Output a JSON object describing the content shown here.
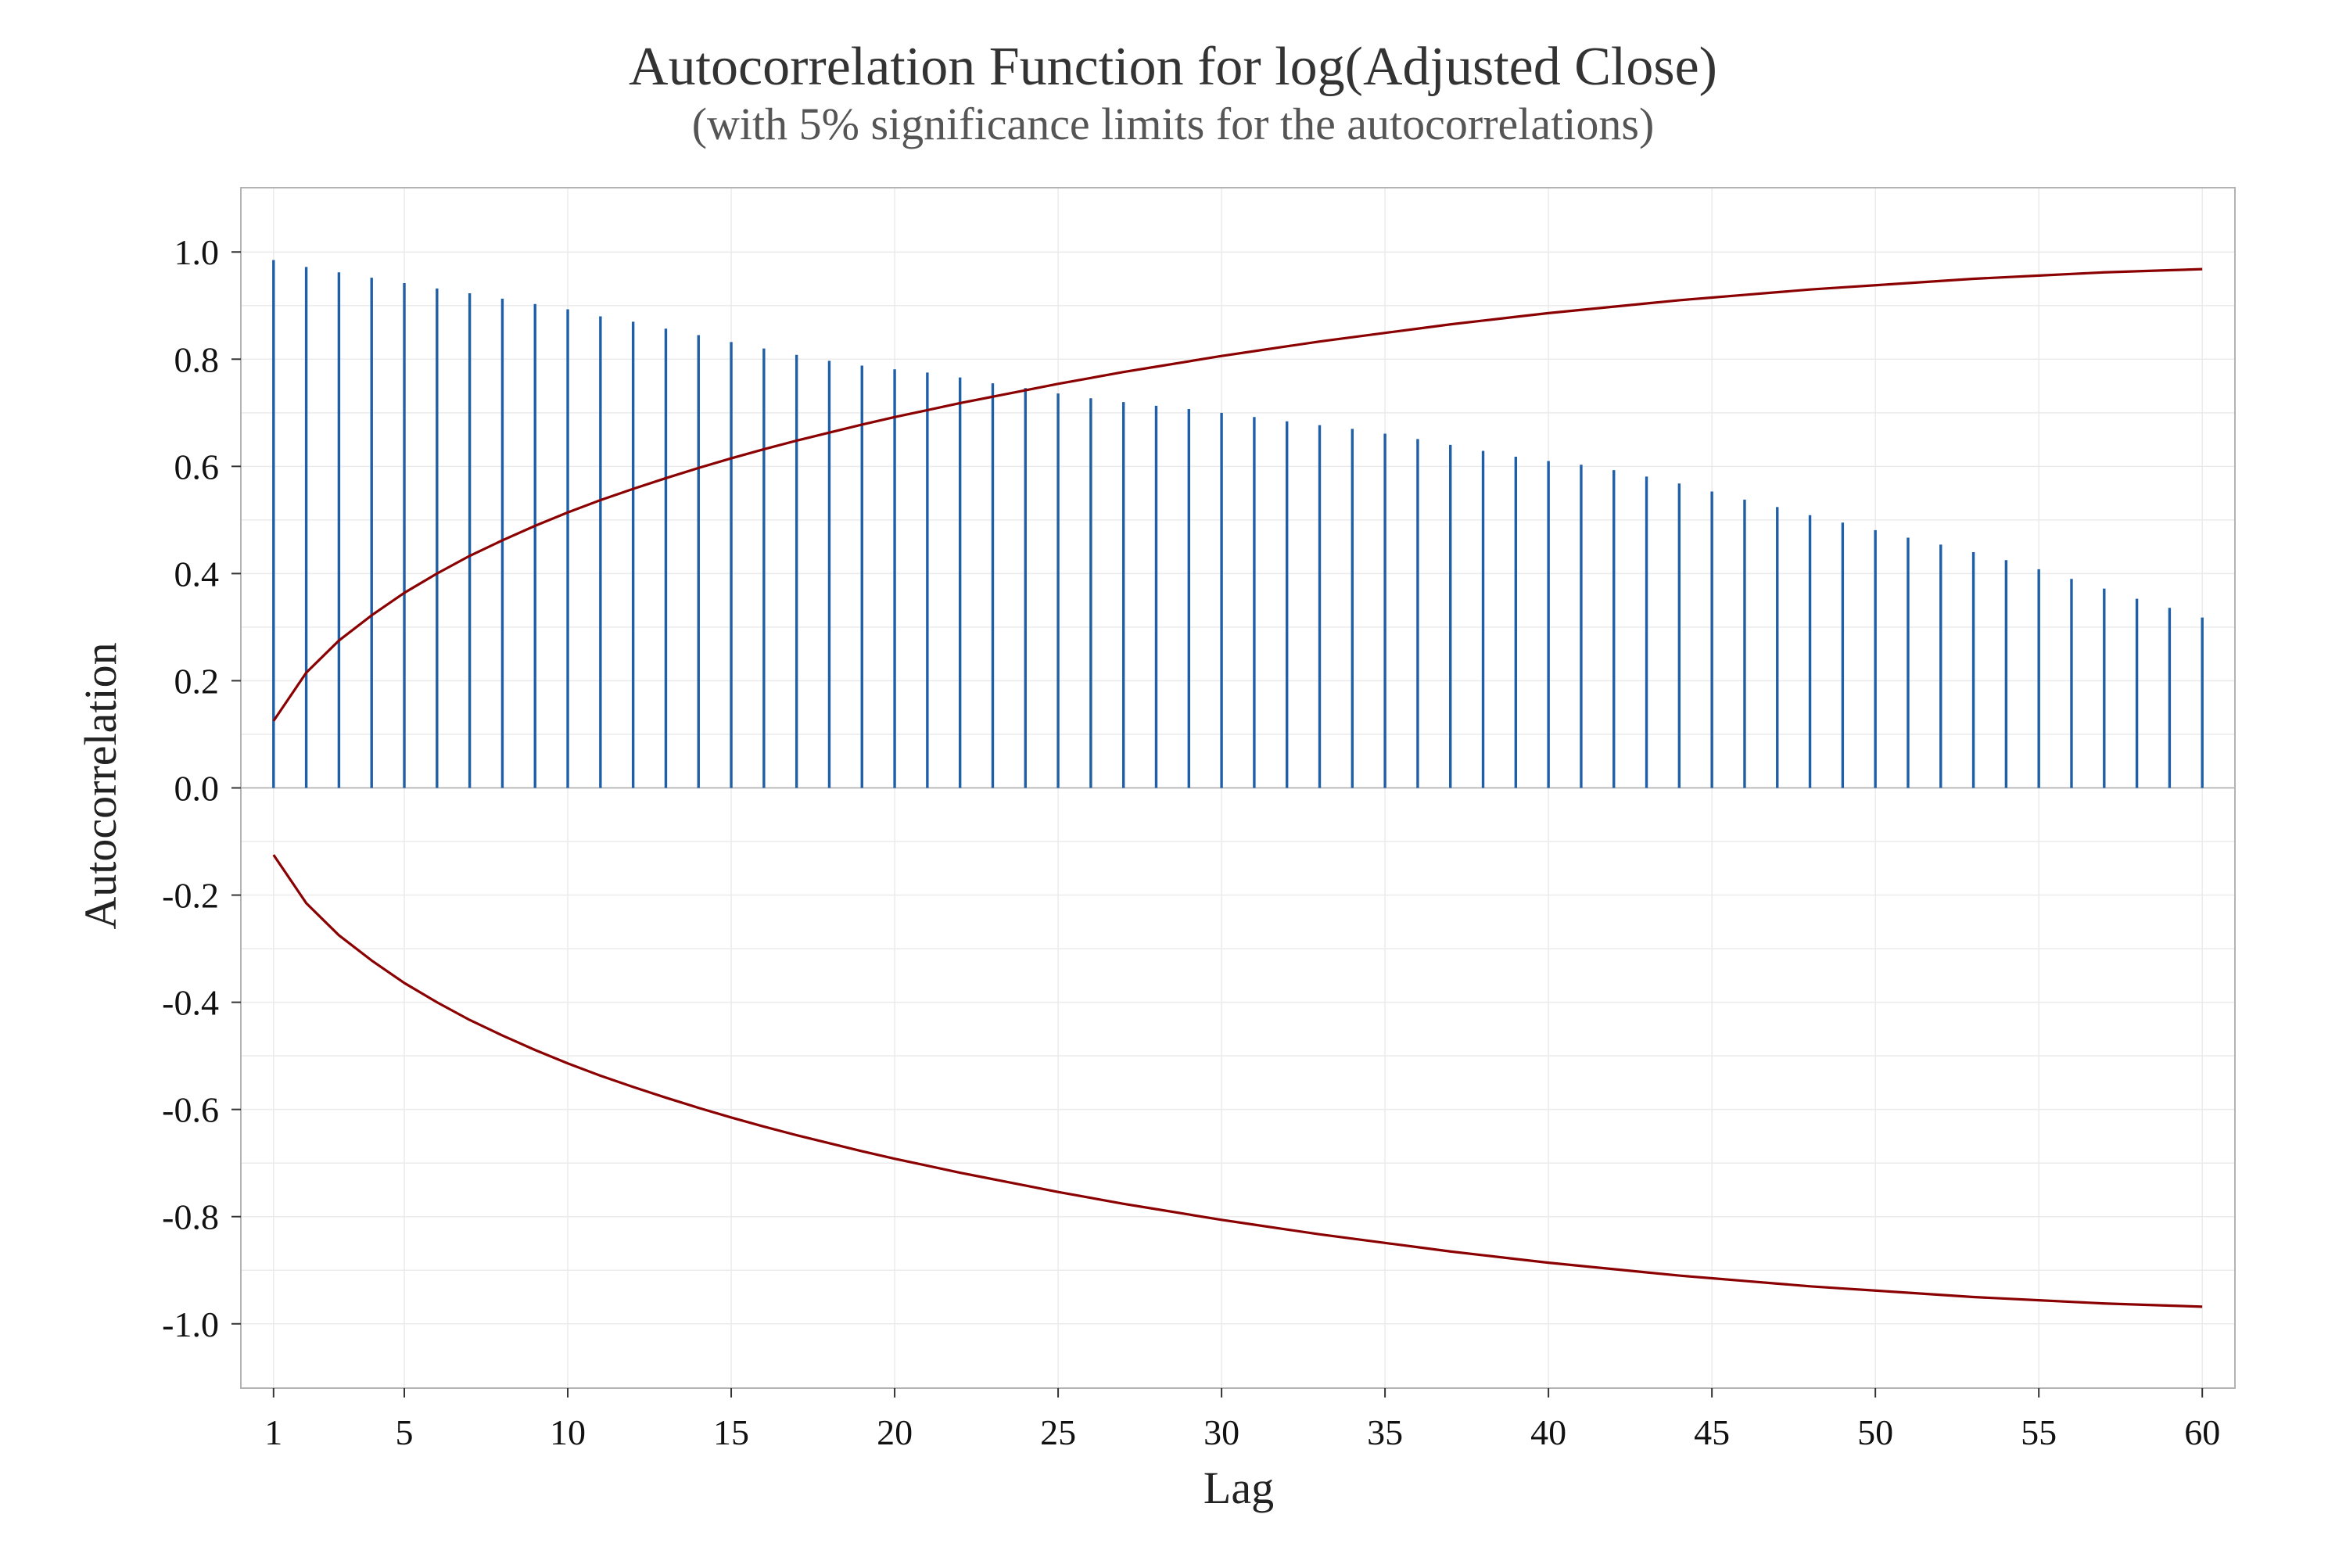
{
  "chart_data": {
    "type": "bar",
    "title": "Autocorrelation Function for log(Adjusted Close)",
    "subtitle": "(with 5% significance limits for the autocorrelations)",
    "xlabel": "Lag",
    "ylabel": "Autocorrelation",
    "xlim": [
      0,
      61
    ],
    "ylim": [
      -1.12,
      1.12
    ],
    "x_ticks": [
      1,
      5,
      10,
      15,
      20,
      25,
      30,
      35,
      40,
      45,
      50,
      55,
      60
    ],
    "x_tick_labels": [
      "1",
      "5",
      "10",
      "15",
      "20",
      "25",
      "30",
      "35",
      "40",
      "45",
      "50",
      "55",
      "60"
    ],
    "y_ticks": [
      -1.0,
      -0.8,
      -0.6,
      -0.4,
      -0.2,
      0.0,
      0.2,
      0.4,
      0.6,
      0.8,
      1.0
    ],
    "y_tick_labels": [
      "-1.0",
      "-0.8",
      "-0.6",
      "-0.4",
      "-0.2",
      "0.0",
      "0.2",
      "0.4",
      "0.6",
      "0.8",
      "1.0"
    ],
    "grid": true,
    "lags": [
      1,
      2,
      3,
      4,
      5,
      6,
      7,
      8,
      9,
      10,
      11,
      12,
      13,
      14,
      15,
      16,
      17,
      18,
      19,
      20,
      21,
      22,
      23,
      24,
      25,
      26,
      27,
      28,
      29,
      30,
      31,
      32,
      33,
      34,
      35,
      36,
      37,
      38,
      39,
      40,
      41,
      42,
      43,
      44,
      45,
      46,
      47,
      48,
      49,
      50,
      51,
      52,
      53,
      54,
      55,
      56,
      57,
      58,
      59,
      60
    ],
    "series": [
      {
        "kind": "acf_bars",
        "color": "#1f5fa8",
        "values": [
          0.985,
          0.972,
          0.962,
          0.952,
          0.942,
          0.932,
          0.923,
          0.913,
          0.903,
          0.893,
          0.88,
          0.87,
          0.857,
          0.845,
          0.832,
          0.82,
          0.808,
          0.797,
          0.788,
          0.781,
          0.775,
          0.766,
          0.755,
          0.746,
          0.736,
          0.727,
          0.72,
          0.713,
          0.707,
          0.7,
          0.692,
          0.684,
          0.677,
          0.67,
          0.661,
          0.651,
          0.64,
          0.629,
          0.618,
          0.61,
          0.603,
          0.593,
          0.581,
          0.568,
          0.553,
          0.538,
          0.524,
          0.509,
          0.495,
          0.481,
          0.467,
          0.454,
          0.44,
          0.425,
          0.408,
          0.39,
          0.372,
          0.353,
          0.336,
          0.318
        ]
      },
      {
        "kind": "upper_limit",
        "color": "#8b0000",
        "values": [
          0.125,
          0.215,
          0.275,
          0.322,
          0.364,
          0.4,
          0.433,
          0.462,
          0.489,
          0.514,
          0.537,
          0.558,
          0.578,
          0.597,
          0.615,
          0.632,
          0.648,
          0.663,
          0.678,
          0.692,
          0.705,
          0.718,
          0.73,
          0.742,
          0.754,
          0.765,
          0.776,
          0.786,
          0.796,
          0.806,
          0.815,
          0.824,
          0.833,
          0.841,
          0.849,
          0.857,
          0.865,
          0.872,
          0.879,
          0.886,
          0.892,
          0.898,
          0.904,
          0.91,
          0.915,
          0.92,
          0.925,
          0.93,
          0.934,
          0.938,
          0.942,
          0.946,
          0.95,
          0.953,
          0.956,
          0.959,
          0.962,
          0.964,
          0.966,
          0.968
        ]
      },
      {
        "kind": "lower_limit",
        "color": "#8b0000",
        "values": [
          -0.125,
          -0.215,
          -0.275,
          -0.322,
          -0.364,
          -0.4,
          -0.433,
          -0.462,
          -0.489,
          -0.514,
          -0.537,
          -0.558,
          -0.578,
          -0.597,
          -0.615,
          -0.632,
          -0.648,
          -0.663,
          -0.678,
          -0.692,
          -0.705,
          -0.718,
          -0.73,
          -0.742,
          -0.754,
          -0.765,
          -0.776,
          -0.786,
          -0.796,
          -0.806,
          -0.815,
          -0.824,
          -0.833,
          -0.841,
          -0.849,
          -0.857,
          -0.865,
          -0.872,
          -0.879,
          -0.886,
          -0.892,
          -0.898,
          -0.904,
          -0.91,
          -0.915,
          -0.92,
          -0.925,
          -0.93,
          -0.934,
          -0.938,
          -0.942,
          -0.946,
          -0.95,
          -0.953,
          -0.956,
          -0.959,
          -0.962,
          -0.964,
          -0.966,
          -0.968
        ]
      }
    ]
  }
}
